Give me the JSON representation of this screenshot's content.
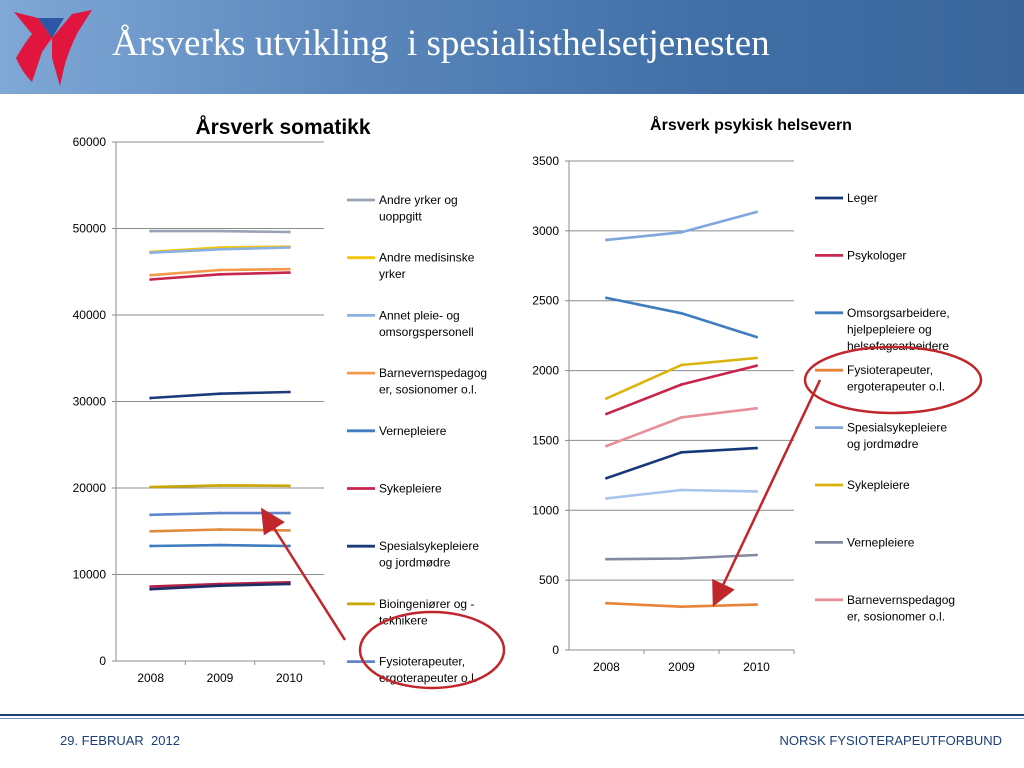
{
  "slide": {
    "title": "Årsverks utvikling  i spesialisthelsetjenesten",
    "footer_date": "29. FEBRUAR  2012",
    "footer_org": "NORSK FYSIOTERAPEUTFORBUND",
    "colors": {
      "header": "#4a78ae",
      "footer": "#1c3f78",
      "annotation": "#c0262c",
      "logo_red": "#e0163f",
      "logo_blue": "#2b57a5"
    }
  },
  "chart_data": [
    {
      "type": "line",
      "title": "Årsverk somatikk",
      "categories": [
        "2008",
        "2009",
        "2010"
      ],
      "ylim": [
        0,
        60000
      ],
      "yticks": [
        0,
        10000,
        20000,
        30000,
        40000,
        50000,
        60000
      ],
      "ytick_labels": [
        "0",
        "10000",
        "20000",
        "30000",
        "40000",
        "50000",
        "60000"
      ],
      "grid": true,
      "legend": "right",
      "series": [
        {
          "name": "Andre yrker og uoppgitt",
          "color": "#9aa2b5",
          "values": [
            49700,
            49700,
            49600
          ]
        },
        {
          "name": "Andre medisinske yrker",
          "color": "#f2c40c",
          "values": [
            47300,
            47800,
            47900
          ]
        },
        {
          "name": "Annet pleie- og omsorgspersonell",
          "color": "#8bb0e0",
          "values": [
            47200,
            47600,
            47800
          ]
        },
        {
          "name": "Barnevernspedagoger, sosionomer o.l.",
          "color": "#f39a4c",
          "values": [
            44600,
            45200,
            45300
          ]
        },
        {
          "name": "Vernepleiere",
          "color": "#3f7cc0",
          "values": [
            13300,
            13400,
            13300
          ]
        },
        {
          "name": "Sykepleiere",
          "color": "#c8254c",
          "values": [
            44100,
            44700,
            44900
          ]
        },
        {
          "name": "Spesialsykepleiere og jordmødre",
          "color": "#1a3a7a",
          "values": [
            30400,
            30900,
            31100
          ]
        },
        {
          "name": "Bioingeniører og -teknikere",
          "color": "#c8a500",
          "values": [
            20100,
            20300,
            20250
          ]
        },
        {
          "name": "Fysioterapeuter, ergoterapeuter o.l.",
          "color": "#5f86c8",
          "values": [
            16900,
            17100,
            17100
          ]
        },
        {
          "name": "",
          "color": "#e08a3e",
          "values": [
            15000,
            15200,
            15100
          ]
        },
        {
          "name": "",
          "color": "#b51f45",
          "values": [
            8600,
            8900,
            9100
          ]
        },
        {
          "name": "",
          "color": "#1d2f66",
          "values": [
            8300,
            8700,
            8900
          ]
        }
      ]
    },
    {
      "type": "line",
      "title": "Årsverk  psykisk helsevern",
      "categories": [
        "2008",
        "2009",
        "2010"
      ],
      "ylim": [
        0,
        3500
      ],
      "yticks": [
        0,
        500,
        1000,
        1500,
        2000,
        2500,
        3000,
        3500
      ],
      "ytick_labels": [
        "0",
        "500",
        "1000",
        "1500",
        "2000",
        "2500",
        "3000",
        "3500"
      ],
      "grid": true,
      "legend": "right",
      "series": [
        {
          "name": "Leger",
          "color": "#16387a",
          "values": [
            1230,
            1415,
            1445
          ]
        },
        {
          "name": "Psykologer",
          "color": "#c8254c",
          "values": [
            1690,
            1900,
            2035
          ]
        },
        {
          "name": "Omsorgsarbeidere, hjelpepleiere og helsefagsarbeidere",
          "color": "#3f7cc0",
          "values": [
            2520,
            2410,
            2240
          ]
        },
        {
          "name": "Fysioterapeuter, ergoterapeuter o.l.",
          "color": "#e8843a",
          "values": [
            335,
            310,
            325
          ]
        },
        {
          "name": "Spesialsykepleiere og jordmødre",
          "color": "#7fa7dd",
          "values": [
            2935,
            2990,
            3135
          ]
        },
        {
          "name": "Sykepleiere",
          "color": "#dbb30a",
          "values": [
            1800,
            2040,
            2090
          ]
        },
        {
          "name": "Vernepleiere",
          "color": "#8289a0",
          "values": [
            650,
            655,
            680
          ]
        },
        {
          "name": "Barnevernspedagoger, sosionomer o.l.",
          "color": "#e98f9a",
          "values": [
            1460,
            1665,
            1730
          ]
        },
        {
          "name": "",
          "color": "#a8c4ee",
          "values": [
            1085,
            1145,
            1135
          ]
        }
      ]
    }
  ],
  "legends": [
    [
      [
        "Andre yrker og",
        "uoppgitt"
      ],
      [
        "Andre medisinske",
        "yrker"
      ],
      [
        "Annet pleie- og",
        "omsorgspersonell"
      ],
      [
        "Barnevernspedagog",
        "er, sosionomer o.l."
      ],
      [
        "Vernepleiere"
      ],
      [
        "Sykepleiere"
      ],
      [
        "Spesialsykepleiere",
        "og jordmødre"
      ],
      [
        "Bioingeniører og -",
        "teknikere"
      ],
      [
        "Fysioterapeuter,",
        "ergoterapeuter o.l."
      ]
    ],
    [
      [
        "Leger"
      ],
      [
        "Psykologer"
      ],
      [
        "Omsorgsarbeidere,",
        "hjelpepleiere og",
        "helsefagsarbeidere"
      ],
      [
        "Fysioterapeuter,",
        "ergoterapeuter o.l."
      ],
      [
        "Spesialsykepleiere",
        "og jordmødre"
      ],
      [
        "Sykepleiere"
      ],
      [
        "Vernepleiere"
      ],
      [
        "Barnevernspedagog",
        "er, sosionomer o.l."
      ]
    ]
  ]
}
